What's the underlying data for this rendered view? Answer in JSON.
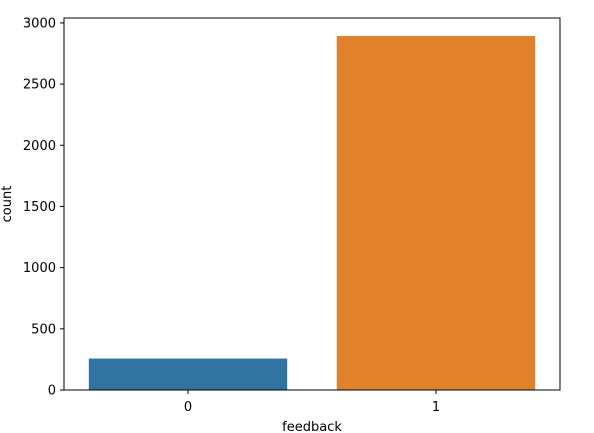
{
  "chart_data": {
    "type": "bar",
    "title": "",
    "xlabel": "feedback",
    "ylabel": "count",
    "categories": [
      "0",
      "1"
    ],
    "values": [
      257,
      2893
    ],
    "ylim": [
      0,
      3040
    ],
    "yticks": [
      0,
      500,
      1000,
      1500,
      2000,
      2500,
      3000
    ],
    "colors": [
      "#3274a1",
      "#e1812c"
    ],
    "grid": false,
    "legend": "none"
  }
}
